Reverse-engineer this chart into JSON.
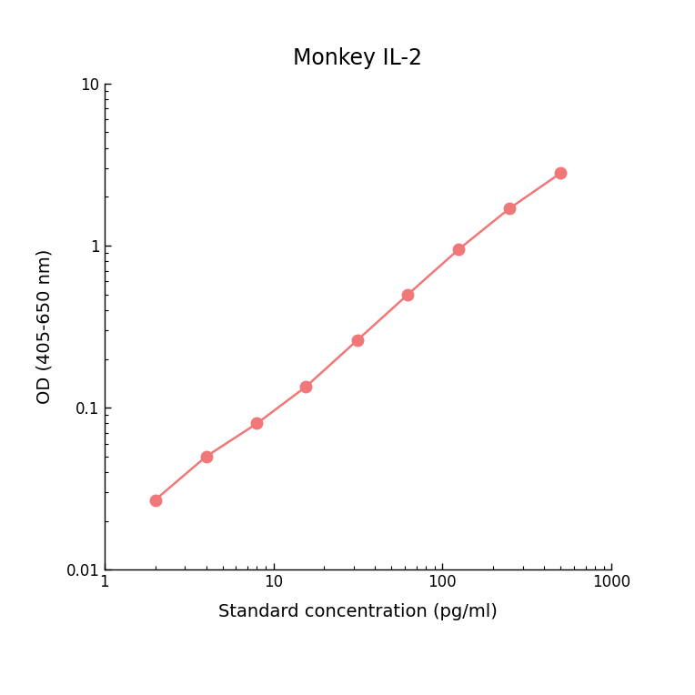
{
  "title": "Monkey IL-2",
  "xlabel": "Standard concentration (pg/ml)",
  "ylabel": "OD (405-650 nm)",
  "x_data": [
    2,
    4,
    8,
    15.6,
    31.25,
    62.5,
    125,
    250,
    500
  ],
  "y_data": [
    0.027,
    0.05,
    0.08,
    0.135,
    0.26,
    0.5,
    0.95,
    1.7,
    2.8
  ],
  "line_color": "#F07878",
  "marker_color": "#F07878",
  "marker_size": 9,
  "line_width": 1.8,
  "xlim": [
    1,
    1000
  ],
  "ylim": [
    0.01,
    10
  ],
  "background_color": "#ffffff",
  "title_fontsize": 17,
  "label_fontsize": 14,
  "tick_fontsize": 12
}
